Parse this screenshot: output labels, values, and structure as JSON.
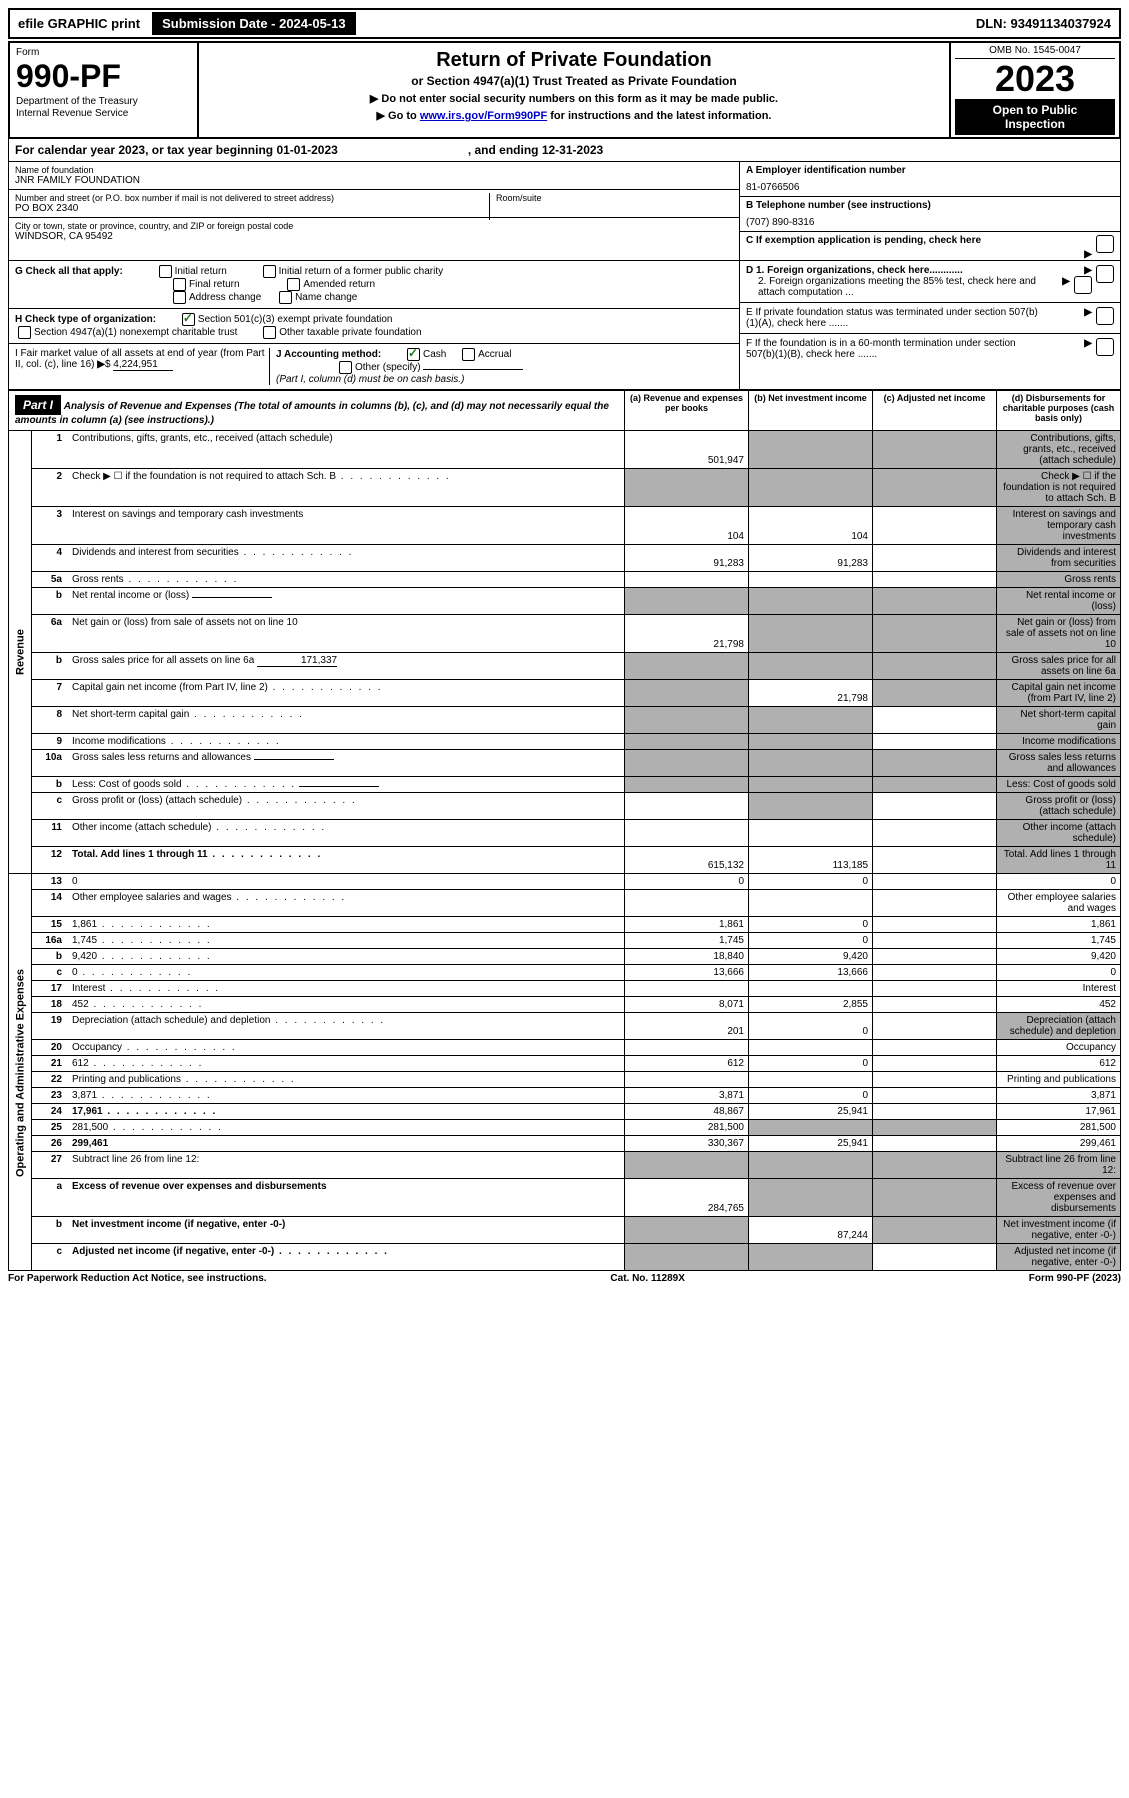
{
  "top_bar": {
    "efile": "efile GRAPHIC print",
    "submission": "Submission Date - 2024-05-13",
    "dln": "DLN: 93491134037924"
  },
  "header": {
    "form_label": "Form",
    "form_name": "990-PF",
    "dept1": "Department of the Treasury",
    "dept2": "Internal Revenue Service",
    "title": "Return of Private Foundation",
    "subtitle": "or Section 4947(a)(1) Trust Treated as Private Foundation",
    "note1": "▶ Do not enter social security numbers on this form as it may be made public.",
    "note2_pre": "▶ Go to ",
    "note2_link": "www.irs.gov/Form990PF",
    "note2_post": " for instructions and the latest information.",
    "omb": "OMB No. 1545-0047",
    "year": "2023",
    "open1": "Open to Public",
    "open2": "Inspection"
  },
  "calendar": {
    "text": "For calendar year 2023, or tax year beginning 01-01-2023",
    "ending": ", and ending 12-31-2023"
  },
  "entity": {
    "name_label": "Name of foundation",
    "name": "JNR FAMILY FOUNDATION",
    "addr_label": "Number and street (or P.O. box number if mail is not delivered to street address)",
    "addr": "PO BOX 2340",
    "room_label": "Room/suite",
    "city_label": "City or town, state or province, country, and ZIP or foreign postal code",
    "city": "WINDSOR, CA  95492",
    "a_label": "A Employer identification number",
    "a_val": "81-0766506",
    "b_label": "B Telephone number (see instructions)",
    "b_val": "(707) 890-8316",
    "c_label": "C If exemption application is pending, check here"
  },
  "checks": {
    "g_label": "G Check all that apply:",
    "g_opts": [
      "Initial return",
      "Initial return of a former public charity",
      "Final return",
      "Amended return",
      "Address change",
      "Name change"
    ],
    "h_label": "H Check type of organization:",
    "h_opt1": "Section 501(c)(3) exempt private foundation",
    "h_opt2": "Section 4947(a)(1) nonexempt charitable trust",
    "h_opt3": "Other taxable private foundation",
    "i_label": "I Fair market value of all assets at end of year (from Part II, col. (c), line 16)",
    "i_val": "4,224,951",
    "j_label": "J Accounting method:",
    "j_cash": "Cash",
    "j_accrual": "Accrual",
    "j_other": "Other (specify)",
    "j_note": "(Part I, column (d) must be on cash basis.)",
    "d1": "D 1. Foreign organizations, check here............",
    "d2": "2. Foreign organizations meeting the 85% test, check here and attach computation ...",
    "e": "E  If private foundation status was terminated under section 507(b)(1)(A), check here .......",
    "f": "F  If the foundation is in a 60-month termination under section 507(b)(1)(B), check here .......",
    "arrow": "▶"
  },
  "part1": {
    "label": "Part I",
    "title": "Analysis of Revenue and Expenses",
    "title_note": " (The total of amounts in columns (b), (c), and (d) may not necessarily equal the amounts in column (a) (see instructions).)",
    "col_a": "(a)   Revenue and expenses per books",
    "col_b": "(b)   Net investment income",
    "col_c": "(c)   Adjusted net income",
    "col_d": "(d)   Disbursements for charitable purposes (cash basis only)"
  },
  "side": {
    "revenue": "Revenue",
    "expenses": "Operating and Administrative Expenses"
  },
  "rows": [
    {
      "n": "1",
      "d": "Contributions, gifts, grants, etc., received (attach schedule)",
      "a": "501,947",
      "b_sh": true,
      "c_sh": true,
      "d_sh": true
    },
    {
      "n": "2",
      "d": "Check ▶ ☐ if the foundation is not required to attach Sch. B",
      "dots": true,
      "a_sh": true,
      "b_sh": true,
      "c_sh": true,
      "d_sh": true
    },
    {
      "n": "3",
      "d": "Interest on savings and temporary cash investments",
      "a": "104",
      "b": "104",
      "d_sh": true
    },
    {
      "n": "4",
      "d": "Dividends and interest from securities",
      "dots": true,
      "a": "91,283",
      "b": "91,283",
      "d_sh": true
    },
    {
      "n": "5a",
      "d": "Gross rents",
      "dots": true,
      "d_sh": true
    },
    {
      "n": "b",
      "d": "Net rental income or (loss)",
      "inline_box": true,
      "a_sh": true,
      "b_sh": true,
      "c_sh": true,
      "d_sh": true
    },
    {
      "n": "6a",
      "d": "Net gain or (loss) from sale of assets not on line 10",
      "a": "21,798",
      "b_sh": true,
      "c_sh": true,
      "d_sh": true
    },
    {
      "n": "b",
      "d": "Gross sales price for all assets on line 6a",
      "inline_val": "171,337",
      "a_sh": true,
      "b_sh": true,
      "c_sh": true,
      "d_sh": true
    },
    {
      "n": "7",
      "d": "Capital gain net income (from Part IV, line 2)",
      "dots": true,
      "a_sh": true,
      "b": "21,798",
      "c_sh": true,
      "d_sh": true
    },
    {
      "n": "8",
      "d": "Net short-term capital gain",
      "dots": true,
      "a_sh": true,
      "b_sh": true,
      "d_sh": true
    },
    {
      "n": "9",
      "d": "Income modifications",
      "dots": true,
      "a_sh": true,
      "b_sh": true,
      "d_sh": true
    },
    {
      "n": "10a",
      "d": "Gross sales less returns and allowances",
      "inline_box": true,
      "a_sh": true,
      "b_sh": true,
      "c_sh": true,
      "d_sh": true
    },
    {
      "n": "b",
      "d": "Less: Cost of goods sold",
      "dots": true,
      "inline_box": true,
      "a_sh": true,
      "b_sh": true,
      "c_sh": true,
      "d_sh": true
    },
    {
      "n": "c",
      "d": "Gross profit or (loss) (attach schedule)",
      "dots": true,
      "b_sh": true,
      "d_sh": true
    },
    {
      "n": "11",
      "d": "Other income (attach schedule)",
      "dots": true,
      "d_sh": true
    },
    {
      "n": "12",
      "d": "Total. Add lines 1 through 11",
      "dots": true,
      "bold": true,
      "a": "615,132",
      "b": "113,185",
      "d_sh": true
    },
    {
      "n": "13",
      "d": "0",
      "a": "0",
      "b": "0"
    },
    {
      "n": "14",
      "d": "Other employee salaries and wages",
      "dots": true
    },
    {
      "n": "15",
      "d": "1,861",
      "dots": true,
      "a": "1,861",
      "b": "0"
    },
    {
      "n": "16a",
      "d": "1,745",
      "dots": true,
      "a": "1,745",
      "b": "0"
    },
    {
      "n": "b",
      "d": "9,420",
      "dots": true,
      "a": "18,840",
      "b": "9,420"
    },
    {
      "n": "c",
      "d": "0",
      "dots": true,
      "a": "13,666",
      "b": "13,666"
    },
    {
      "n": "17",
      "d": "Interest",
      "dots": true
    },
    {
      "n": "18",
      "d": "452",
      "dots": true,
      "a": "8,071",
      "b": "2,855"
    },
    {
      "n": "19",
      "d": "Depreciation (attach schedule) and depletion",
      "dots": true,
      "a": "201",
      "b": "0",
      "d_sh": true
    },
    {
      "n": "20",
      "d": "Occupancy",
      "dots": true
    },
    {
      "n": "21",
      "d": "612",
      "dots": true,
      "a": "612",
      "b": "0"
    },
    {
      "n": "22",
      "d": "Printing and publications",
      "dots": true
    },
    {
      "n": "23",
      "d": "3,871",
      "dots": true,
      "a": "3,871",
      "b": "0"
    },
    {
      "n": "24",
      "d": "17,961",
      "dots": true,
      "bold": true,
      "a": "48,867",
      "b": "25,941"
    },
    {
      "n": "25",
      "d": "281,500",
      "dots": true,
      "a": "281,500",
      "b_sh": true,
      "c_sh": true
    },
    {
      "n": "26",
      "d": "299,461",
      "bold": true,
      "a": "330,367",
      "b": "25,941"
    },
    {
      "n": "27",
      "d": "Subtract line 26 from line 12:",
      "a_sh": true,
      "b_sh": true,
      "c_sh": true,
      "d_sh": true
    },
    {
      "n": "a",
      "d": "Excess of revenue over expenses and disbursements",
      "bold": true,
      "a": "284,765",
      "b_sh": true,
      "c_sh": true,
      "d_sh": true
    },
    {
      "n": "b",
      "d": "Net investment income (if negative, enter -0-)",
      "bold": true,
      "a_sh": true,
      "b": "87,244",
      "c_sh": true,
      "d_sh": true
    },
    {
      "n": "c",
      "d": "Adjusted net income (if negative, enter -0-)",
      "dots": true,
      "bold": true,
      "a_sh": true,
      "b_sh": true,
      "d_sh": true
    }
  ],
  "footer": {
    "left": "For Paperwork Reduction Act Notice, see instructions.",
    "mid": "Cat. No. 11289X",
    "right": "Form 990-PF (2023)"
  }
}
